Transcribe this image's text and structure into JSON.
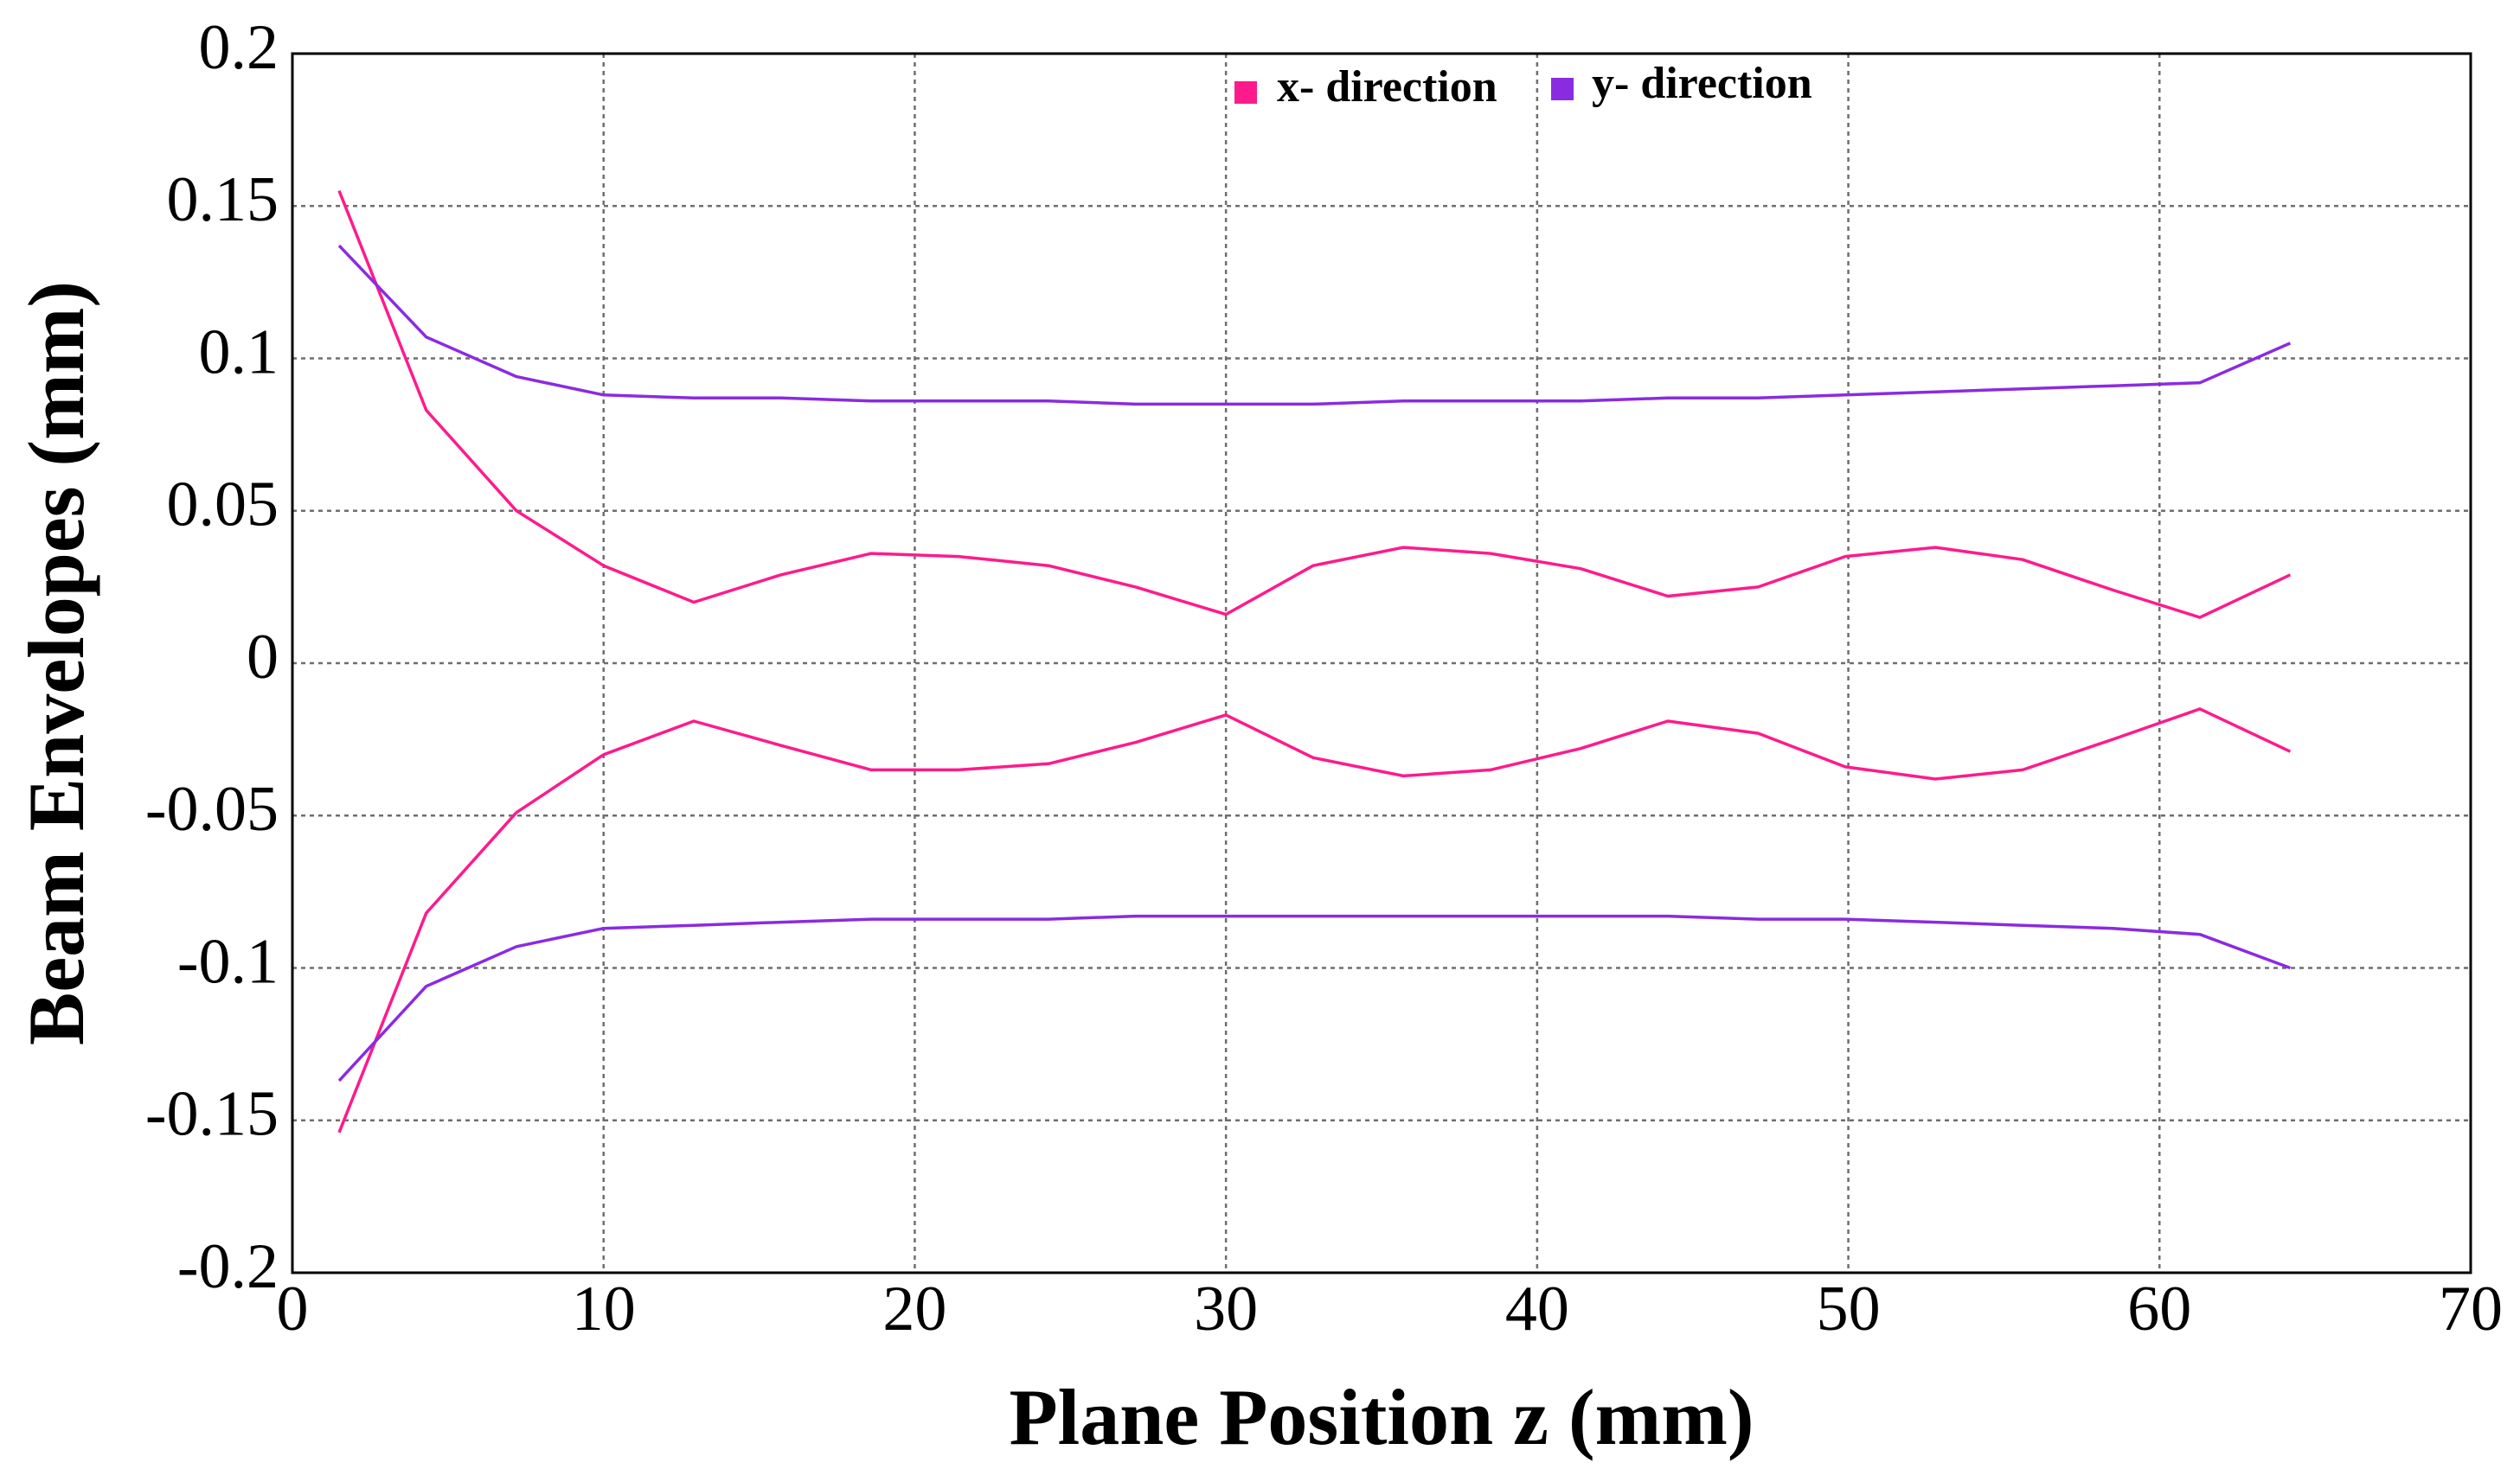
{
  "chart_data": {
    "type": "line",
    "xlabel": "Plane Position z (mm)",
    "ylabel": "Beam Envelopes (mm)",
    "xlim": [
      0,
      70
    ],
    "ylim": [
      -0.2,
      0.2
    ],
    "x_ticks": [
      "0",
      "10",
      "20",
      "30",
      "40",
      "50",
      "60",
      "70"
    ],
    "y_ticks": [
      "0.2",
      "0.15",
      "0.1",
      "0.05",
      "0",
      "-0.05",
      "-0.1",
      "-0.15",
      "-0.2"
    ],
    "grid": true,
    "legend_position": "top-center",
    "legend": [
      {
        "label": "x- direction",
        "color": "#ff1a8c"
      },
      {
        "label": "y- direction",
        "color": "#8a2be2"
      }
    ],
    "series": [
      {
        "name": "x- direction",
        "color": "#ff1a8c",
        "x": [
          1.5,
          4.3,
          7.2,
          10.0,
          12.9,
          15.7,
          18.6,
          21.4,
          24.3,
          27.1,
          30.0,
          32.8,
          35.7,
          38.5,
          41.4,
          44.2,
          47.1,
          49.9,
          52.8,
          55.6,
          58.5,
          61.3,
          64.2
        ],
        "y": [
          0.155,
          0.083,
          0.05,
          0.032,
          0.02,
          0.029,
          0.036,
          0.035,
          0.032,
          0.025,
          0.016,
          0.032,
          0.038,
          0.036,
          0.031,
          0.022,
          0.025,
          0.035,
          0.038,
          0.034,
          0.024,
          0.015,
          0.029
        ]
      },
      {
        "name": "x- direction",
        "color": "#ff1a8c",
        "x": [
          1.5,
          4.3,
          7.2,
          10.0,
          12.9,
          15.7,
          18.6,
          21.4,
          24.3,
          27.1,
          30.0,
          32.8,
          35.7,
          38.5,
          41.4,
          44.2,
          47.1,
          49.9,
          52.8,
          55.6,
          58.5,
          61.3,
          64.2
        ],
        "y": [
          -0.154,
          -0.082,
          -0.049,
          -0.03,
          -0.019,
          -0.027,
          -0.035,
          -0.035,
          -0.033,
          -0.026,
          -0.017,
          -0.031,
          -0.037,
          -0.035,
          -0.028,
          -0.019,
          -0.023,
          -0.034,
          -0.038,
          -0.035,
          -0.025,
          -0.015,
          -0.029
        ]
      },
      {
        "name": "y- direction",
        "color": "#8a2be2",
        "x": [
          1.5,
          4.3,
          7.2,
          10.0,
          12.9,
          15.7,
          18.6,
          21.4,
          24.3,
          27.1,
          30.0,
          32.8,
          35.7,
          38.5,
          41.4,
          44.2,
          47.1,
          49.9,
          52.8,
          55.6,
          58.5,
          61.3,
          64.2
        ],
        "y": [
          0.137,
          0.107,
          0.094,
          0.088,
          0.087,
          0.087,
          0.086,
          0.086,
          0.086,
          0.085,
          0.085,
          0.085,
          0.086,
          0.086,
          0.086,
          0.087,
          0.087,
          0.088,
          0.089,
          0.09,
          0.091,
          0.092,
          0.105
        ]
      },
      {
        "name": "y- direction",
        "color": "#8a2be2",
        "x": [
          1.5,
          4.3,
          7.2,
          10.0,
          12.9,
          15.7,
          18.6,
          21.4,
          24.3,
          27.1,
          30.0,
          32.8,
          35.7,
          38.5,
          41.4,
          44.2,
          47.1,
          49.9,
          52.8,
          55.6,
          58.5,
          61.3,
          64.2
        ],
        "y": [
          -0.137,
          -0.106,
          -0.093,
          -0.087,
          -0.086,
          -0.085,
          -0.084,
          -0.084,
          -0.084,
          -0.083,
          -0.083,
          -0.083,
          -0.083,
          -0.083,
          -0.083,
          -0.083,
          -0.084,
          -0.084,
          -0.085,
          -0.086,
          -0.087,
          -0.089,
          -0.1
        ]
      }
    ]
  }
}
